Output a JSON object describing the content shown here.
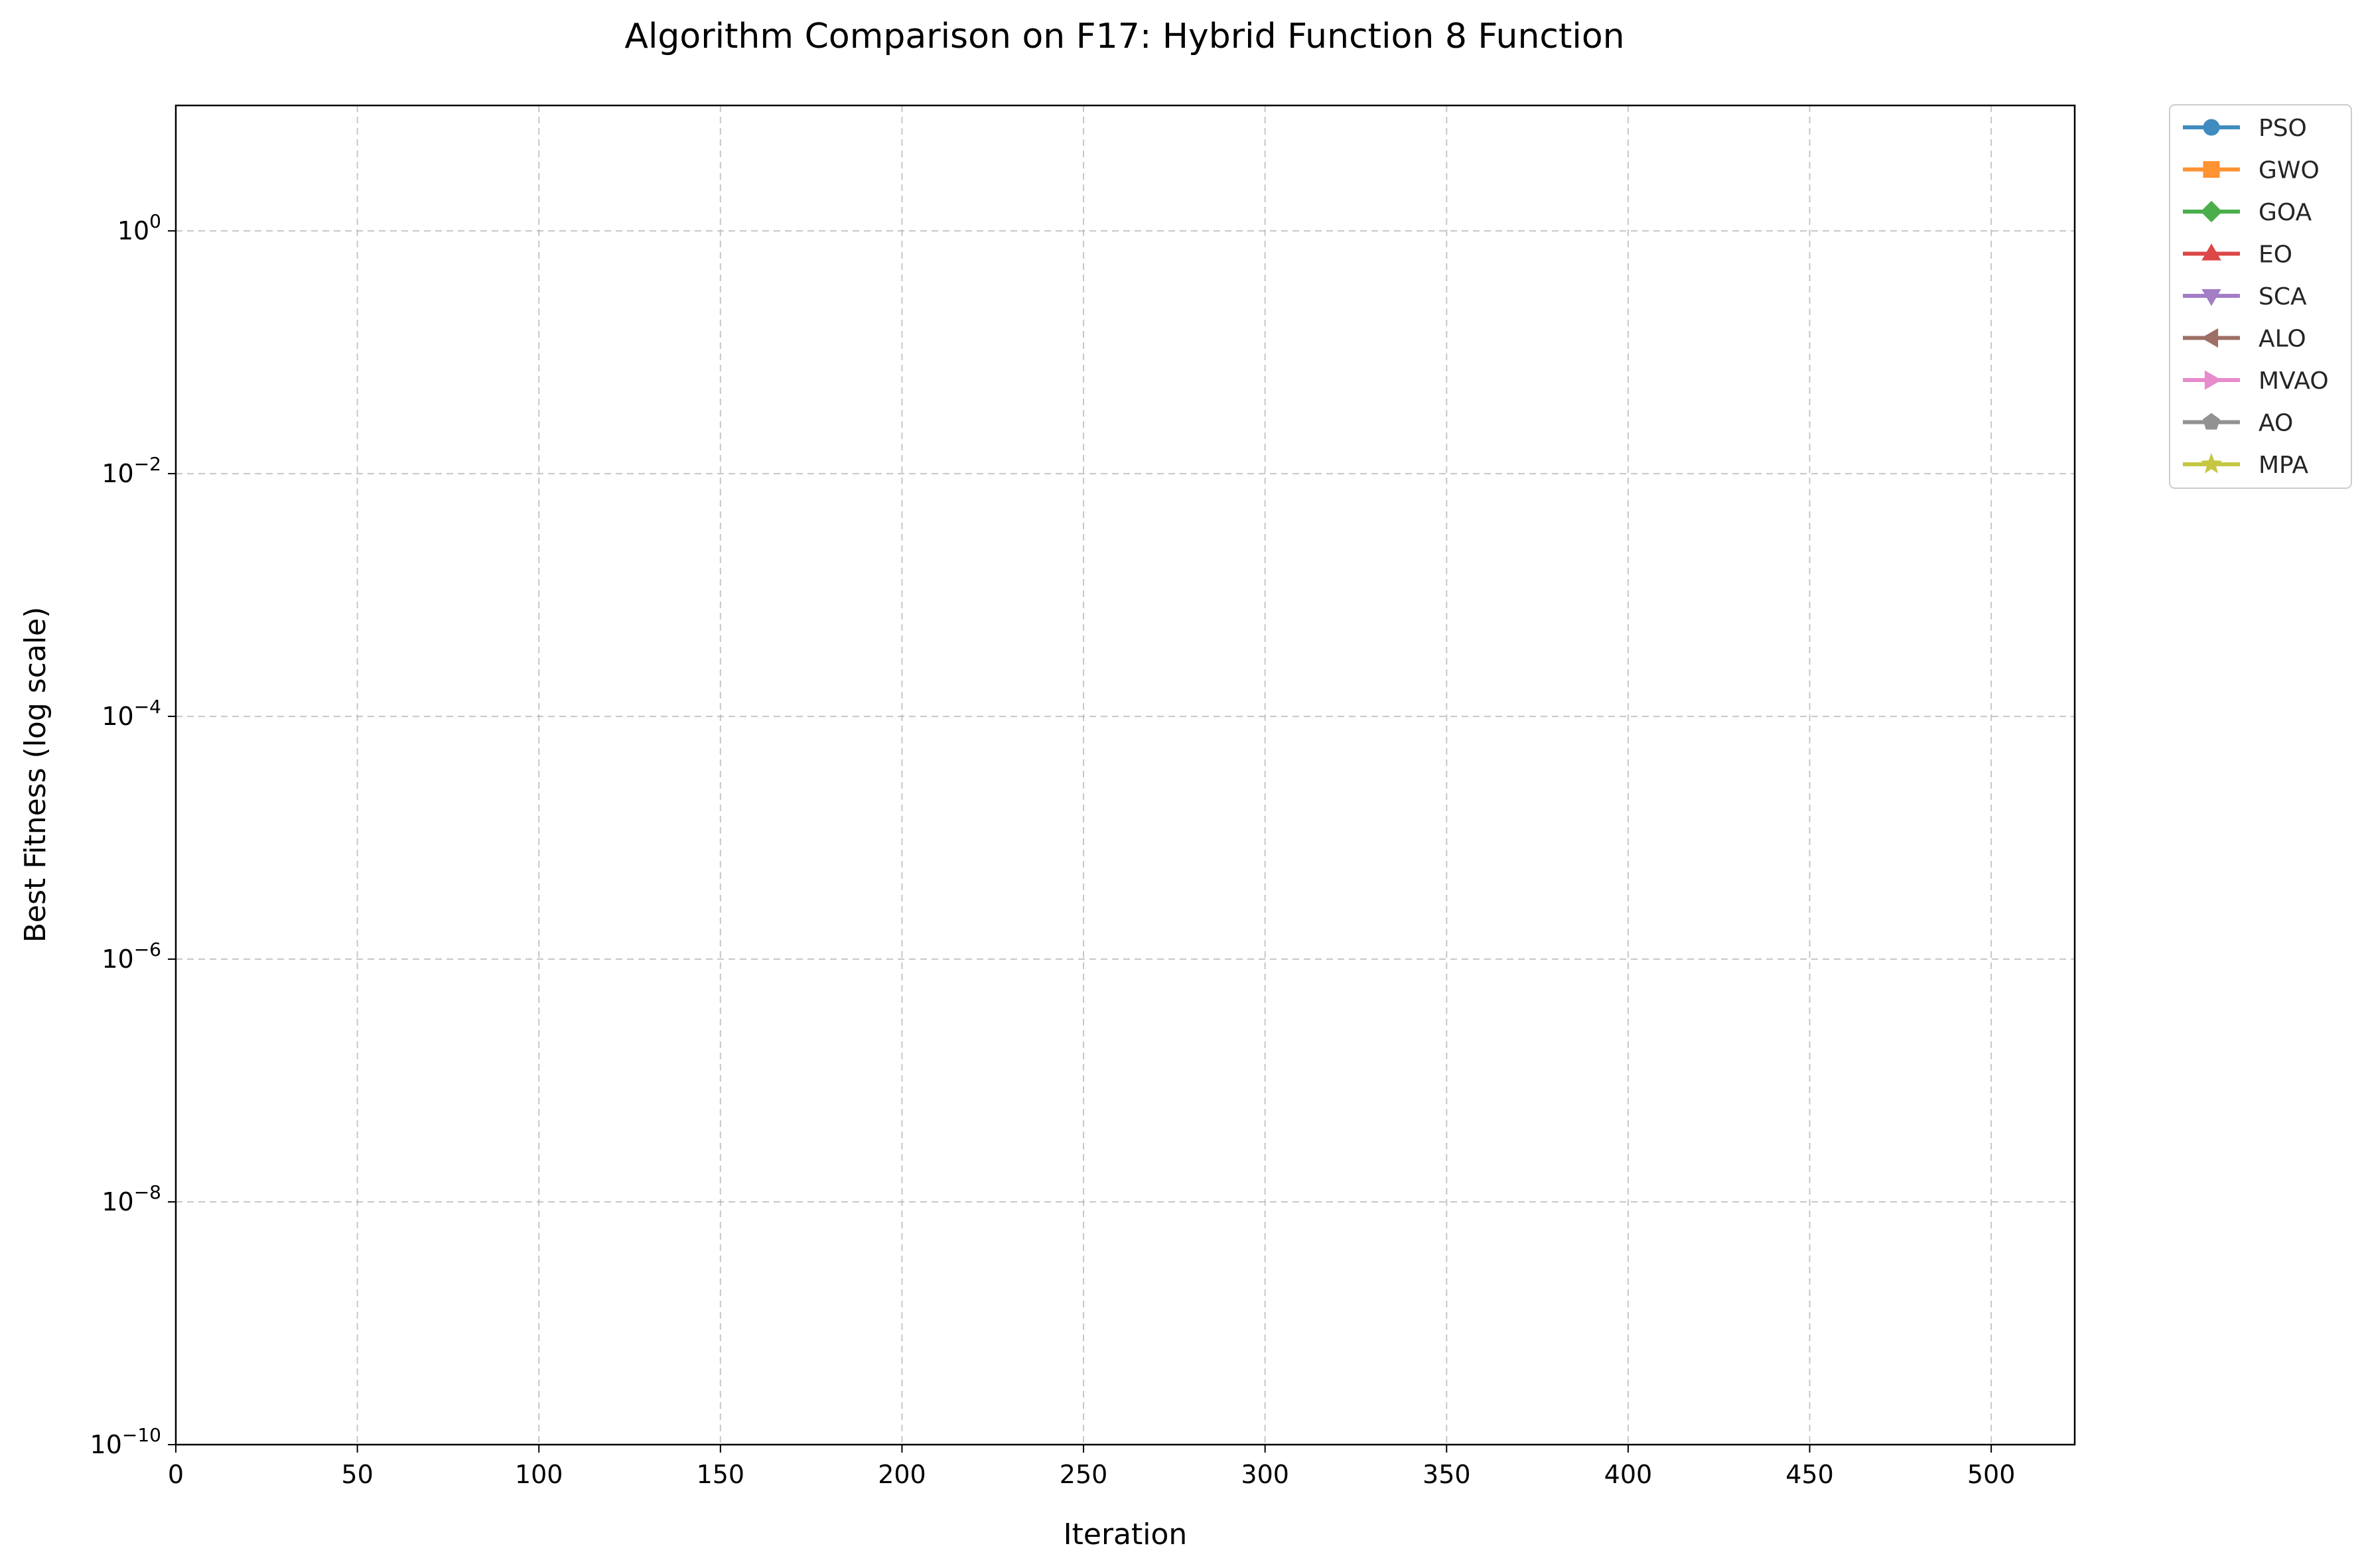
{
  "chart_data": {
    "type": "line",
    "title": "Algorithm Comparison on F17: Hybrid Function 8 Function",
    "xlabel": "Iteration",
    "ylabel": "Best Fitness (log scale)",
    "xscale": "linear",
    "yscale": "log",
    "xlim": [
      0,
      523
    ],
    "ylim": [
      1e-10,
      10.8
    ],
    "x_ticks": [
      0,
      50,
      100,
      150,
      200,
      250,
      300,
      350,
      400,
      450,
      500
    ],
    "y_ticks": [
      {
        "base": "10",
        "exp": "0",
        "value": 1
      },
      {
        "base": "10",
        "exp": "−2",
        "value": 0.01
      },
      {
        "base": "10",
        "exp": "−4",
        "value": 0.0001
      },
      {
        "base": "10",
        "exp": "−6",
        "value": 1e-06
      },
      {
        "base": "10",
        "exp": "−8",
        "value": 1e-08
      },
      {
        "base": "10",
        "exp": "−10",
        "value": 1e-10
      }
    ],
    "grid": true,
    "legend_position": "outside-right-top",
    "series": [
      {
        "name": "PSO",
        "color": "#1f77b4",
        "marker": "circle",
        "x": [],
        "y": []
      },
      {
        "name": "GWO",
        "color": "#ff7f0e",
        "marker": "square",
        "x": [],
        "y": []
      },
      {
        "name": "GOA",
        "color": "#2ca02c",
        "marker": "diamond",
        "x": [],
        "y": []
      },
      {
        "name": "EO",
        "color": "#d62728",
        "marker": "triangle-up",
        "x": [],
        "y": []
      },
      {
        "name": "SCA",
        "color": "#9467bd",
        "marker": "triangle-down",
        "x": [],
        "y": []
      },
      {
        "name": "ALO",
        "color": "#8c564b",
        "marker": "triangle-left",
        "x": [],
        "y": []
      },
      {
        "name": "MVAO",
        "color": "#e377c2",
        "marker": "triangle-right",
        "x": [],
        "y": []
      },
      {
        "name": "AO",
        "color": "#7f7f7f",
        "marker": "pentagon",
        "x": [],
        "y": []
      },
      {
        "name": "MPA",
        "color": "#bcbd22",
        "marker": "star",
        "x": [],
        "y": []
      }
    ]
  }
}
